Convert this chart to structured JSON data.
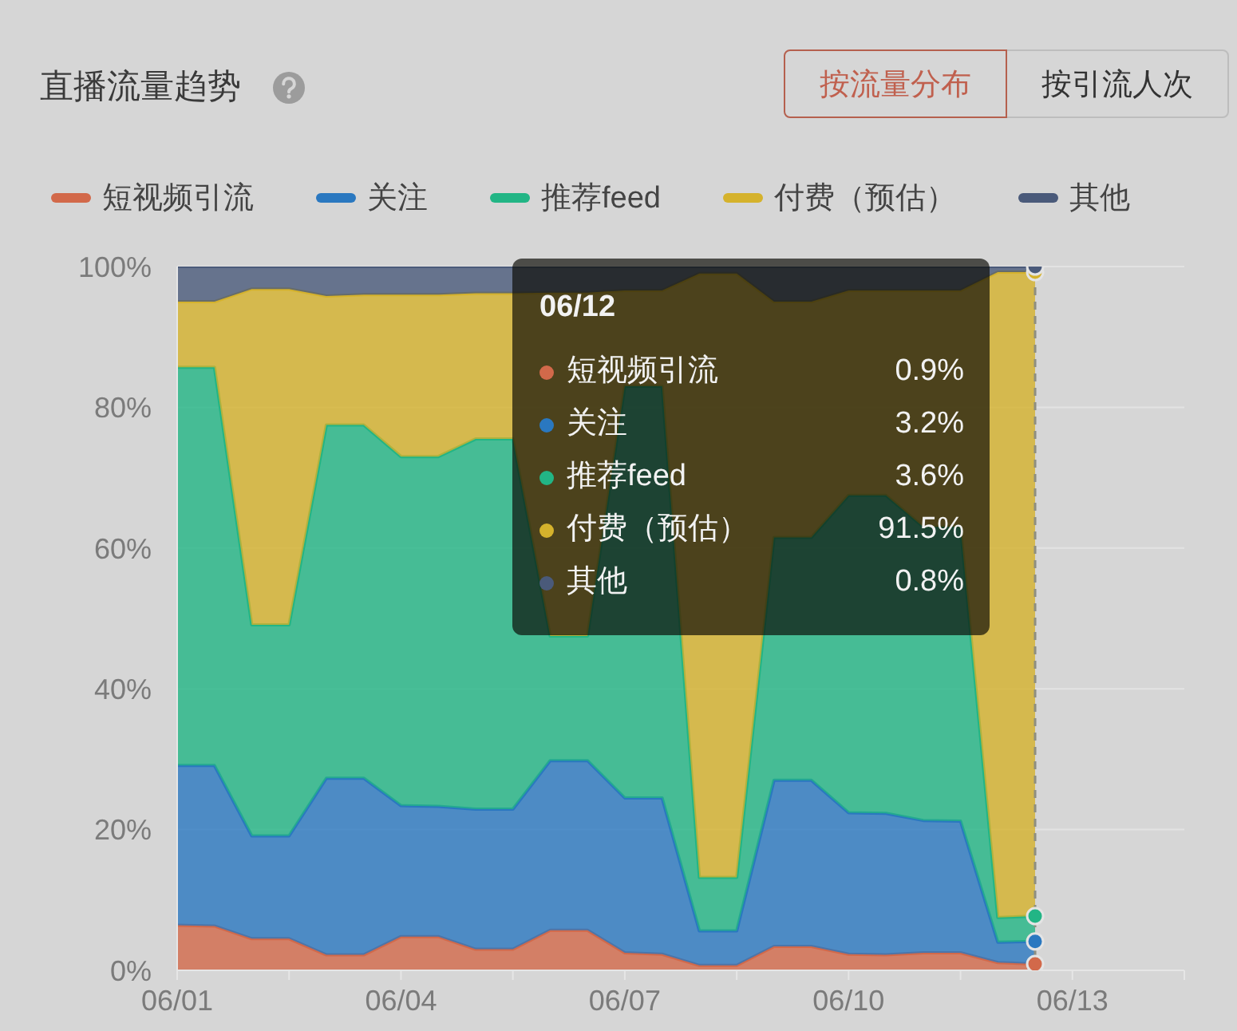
{
  "chart_data": {
    "type": "area",
    "title": "直播流量趋势",
    "stacked": true,
    "grid": "y",
    "legend": "top",
    "categories": [
      "06/01",
      null,
      null,
      null,
      null,
      null,
      "06/04",
      null,
      null,
      null,
      null,
      null,
      "06/07",
      null,
      null,
      null,
      null,
      null,
      "06/10",
      null,
      null,
      null,
      null,
      null,
      "06/13",
      null,
      null,
      null
    ],
    "ylim": [
      0,
      100
    ],
    "yticks": [
      {
        "value": 0,
        "label": "0%"
      },
      {
        "value": 20,
        "label": "20%"
      },
      {
        "value": 40,
        "label": "40%"
      },
      {
        "value": 60,
        "label": "60%"
      },
      {
        "value": 80,
        "label": "80%"
      },
      {
        "value": 100,
        "label": "100%"
      }
    ],
    "series": [
      {
        "name": "短视频引流",
        "color": "#d2694a",
        "values": [
          6.4,
          6.3,
          4.5,
          4.5,
          2.2,
          2.2,
          4.8,
          4.8,
          3.0,
          3.0,
          5.7,
          5.7,
          2.5,
          2.3,
          0.7,
          0.7,
          3.4,
          3.4,
          2.3,
          2.2,
          2.5,
          2.5,
          1.1,
          0.9,
          null,
          null,
          null,
          null
        ]
      },
      {
        "name": "关注",
        "color": "#2a78c0",
        "values": [
          22.7,
          22.8,
          14.6,
          14.6,
          25.1,
          25.1,
          18.6,
          18.5,
          19.9,
          19.9,
          24.1,
          24.1,
          22.0,
          22.2,
          4.9,
          4.9,
          23.6,
          23.6,
          20.1,
          20.1,
          18.8,
          18.7,
          2.9,
          3.2,
          null,
          null,
          null,
          null
        ]
      },
      {
        "name": "推荐feed",
        "color": "#22b585",
        "values": [
          56.6,
          56.6,
          30.0,
          30.0,
          50.2,
          50.2,
          49.6,
          49.7,
          52.6,
          52.6,
          17.7,
          17.7,
          58.5,
          58.5,
          7.6,
          7.6,
          34.5,
          34.5,
          45.1,
          45.2,
          41.7,
          41.8,
          3.5,
          3.6,
          null,
          null,
          null,
          null
        ]
      },
      {
        "name": "付费（预估）",
        "color": "#d5b22c",
        "values": [
          9.3,
          9.3,
          47.7,
          47.7,
          18.3,
          18.5,
          23.0,
          23.0,
          20.7,
          20.7,
          48.8,
          48.8,
          13.6,
          13.6,
          85.8,
          85.8,
          33.5,
          33.5,
          29.1,
          29.1,
          33.6,
          33.6,
          91.7,
          91.5,
          null,
          null,
          null,
          null
        ]
      },
      {
        "name": "其他",
        "color": "#4a5a7a",
        "values": [
          5.0,
          5.0,
          3.2,
          3.2,
          4.2,
          4.0,
          4.0,
          4.0,
          3.8,
          3.8,
          3.7,
          3.7,
          3.4,
          3.4,
          1.0,
          1.0,
          5.0,
          5.0,
          3.4,
          3.4,
          3.4,
          3.4,
          0.8,
          0.8,
          null,
          null,
          null,
          null
        ]
      }
    ],
    "annotations": [
      "按流量分布",
      "按引流人次",
      "06/12",
      "0.9%",
      "3.2%",
      "3.6%",
      "91.5%",
      "0.8%"
    ]
  }
}
